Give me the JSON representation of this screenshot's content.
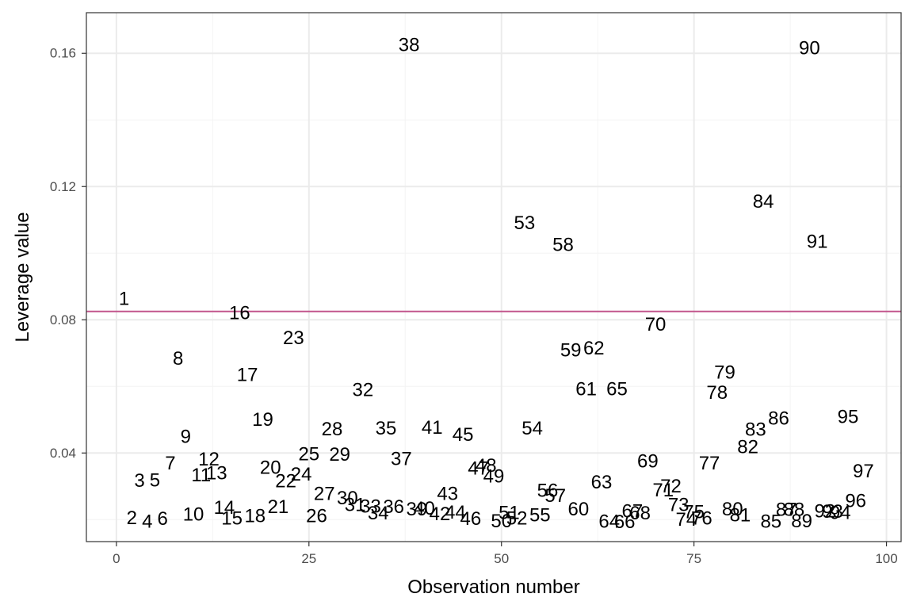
{
  "chart_data": {
    "type": "scatter",
    "title": "",
    "xlabel": "Observation number",
    "ylabel": "Leverage value",
    "xlim": [
      -3.9,
      101.9
    ],
    "ylim": [
      0.0134,
      0.1722
    ],
    "x_ticks": [
      0,
      25,
      50,
      75,
      100
    ],
    "x_tick_labels": [
      "0",
      "25",
      "50",
      "75",
      "100"
    ],
    "y_ticks": [
      0.04,
      0.08,
      0.12,
      0.16
    ],
    "y_tick_labels": [
      "0.04",
      "0.08",
      "0.12",
      "0.16"
    ],
    "x_minor": [
      12.5,
      37.5,
      62.5,
      87.5
    ],
    "y_minor": [
      0.02,
      0.06,
      0.1,
      0.14
    ],
    "grid": true,
    "legend": "none",
    "point_style": "text-label",
    "threshold_line": {
      "y": 0.0825,
      "color": "#c2558c"
    },
    "colors": {
      "panel_border": "#333333",
      "grid_major": "#ebebeb",
      "grid_minor": "#f4f4f4",
      "tick_text": "#4d4d4d"
    },
    "points": [
      {
        "x": 1,
        "y": 0.0863,
        "label": "1"
      },
      {
        "x": 2,
        "y": 0.0204,
        "label": "2"
      },
      {
        "x": 3,
        "y": 0.0316,
        "label": "3"
      },
      {
        "x": 4,
        "y": 0.0193,
        "label": "4"
      },
      {
        "x": 5,
        "y": 0.0317,
        "label": "5"
      },
      {
        "x": 6,
        "y": 0.0202,
        "label": "6"
      },
      {
        "x": 7,
        "y": 0.0368,
        "label": "7"
      },
      {
        "x": 8,
        "y": 0.0683,
        "label": "8"
      },
      {
        "x": 9,
        "y": 0.0448,
        "label": "9"
      },
      {
        "x": 10,
        "y": 0.0215,
        "label": "10"
      },
      {
        "x": 11,
        "y": 0.0333,
        "label": "11"
      },
      {
        "x": 12,
        "y": 0.0381,
        "label": "12"
      },
      {
        "x": 13,
        "y": 0.0339,
        "label": "13"
      },
      {
        "x": 14,
        "y": 0.0235,
        "label": "14"
      },
      {
        "x": 15,
        "y": 0.0203,
        "label": "15"
      },
      {
        "x": 16,
        "y": 0.082,
        "label": "16"
      },
      {
        "x": 17,
        "y": 0.0634,
        "label": "17"
      },
      {
        "x": 18,
        "y": 0.021,
        "label": "18"
      },
      {
        "x": 19,
        "y": 0.05,
        "label": "19"
      },
      {
        "x": 20,
        "y": 0.0355,
        "label": "20"
      },
      {
        "x": 21,
        "y": 0.0238,
        "label": "21"
      },
      {
        "x": 22,
        "y": 0.0315,
        "label": "22"
      },
      {
        "x": 23,
        "y": 0.0745,
        "label": "23"
      },
      {
        "x": 24,
        "y": 0.0335,
        "label": "24"
      },
      {
        "x": 25,
        "y": 0.0396,
        "label": "25"
      },
      {
        "x": 26,
        "y": 0.021,
        "label": "26"
      },
      {
        "x": 27,
        "y": 0.0277,
        "label": "27"
      },
      {
        "x": 28,
        "y": 0.0471,
        "label": "28"
      },
      {
        "x": 29,
        "y": 0.0395,
        "label": "29"
      },
      {
        "x": 30,
        "y": 0.0264,
        "label": "30"
      },
      {
        "x": 31,
        "y": 0.0244,
        "label": "31"
      },
      {
        "x": 32,
        "y": 0.0589,
        "label": "32"
      },
      {
        "x": 33,
        "y": 0.0239,
        "label": "33"
      },
      {
        "x": 34,
        "y": 0.0218,
        "label": "34"
      },
      {
        "x": 35,
        "y": 0.0473,
        "label": "35"
      },
      {
        "x": 36,
        "y": 0.0238,
        "label": "36"
      },
      {
        "x": 37,
        "y": 0.0382,
        "label": "37"
      },
      {
        "x": 38,
        "y": 0.1624,
        "label": "38"
      },
      {
        "x": 39,
        "y": 0.0231,
        "label": "39"
      },
      {
        "x": 40,
        "y": 0.0233,
        "label": "40"
      },
      {
        "x": 41,
        "y": 0.0476,
        "label": "41"
      },
      {
        "x": 42,
        "y": 0.0216,
        "label": "42"
      },
      {
        "x": 43,
        "y": 0.0277,
        "label": "43"
      },
      {
        "x": 44,
        "y": 0.0221,
        "label": "44"
      },
      {
        "x": 45,
        "y": 0.0454,
        "label": "45"
      },
      {
        "x": 46,
        "y": 0.0202,
        "label": "46"
      },
      {
        "x": 47,
        "y": 0.0353,
        "label": "47"
      },
      {
        "x": 48,
        "y": 0.0361,
        "label": "48"
      },
      {
        "x": 49,
        "y": 0.0329,
        "label": "49"
      },
      {
        "x": 50,
        "y": 0.0195,
        "label": "50"
      },
      {
        "x": 51,
        "y": 0.022,
        "label": "51"
      },
      {
        "x": 52,
        "y": 0.0203,
        "label": "52"
      },
      {
        "x": 53,
        "y": 0.109,
        "label": "53"
      },
      {
        "x": 54,
        "y": 0.0473,
        "label": "54"
      },
      {
        "x": 55,
        "y": 0.0212,
        "label": "55"
      },
      {
        "x": 56,
        "y": 0.0286,
        "label": "56"
      },
      {
        "x": 57,
        "y": 0.0271,
        "label": "57"
      },
      {
        "x": 58,
        "y": 0.1024,
        "label": "58"
      },
      {
        "x": 59,
        "y": 0.0708,
        "label": "59"
      },
      {
        "x": 60,
        "y": 0.0231,
        "label": "60"
      },
      {
        "x": 61,
        "y": 0.0591,
        "label": "61"
      },
      {
        "x": 62,
        "y": 0.0714,
        "label": "62"
      },
      {
        "x": 63,
        "y": 0.0311,
        "label": "63"
      },
      {
        "x": 64,
        "y": 0.0193,
        "label": "64"
      },
      {
        "x": 65,
        "y": 0.0591,
        "label": "65"
      },
      {
        "x": 66,
        "y": 0.0192,
        "label": "66"
      },
      {
        "x": 67,
        "y": 0.0224,
        "label": "67"
      },
      {
        "x": 68,
        "y": 0.0218,
        "label": "68"
      },
      {
        "x": 69,
        "y": 0.0375,
        "label": "69"
      },
      {
        "x": 70,
        "y": 0.0785,
        "label": "70"
      },
      {
        "x": 71,
        "y": 0.0287,
        "label": "71"
      },
      {
        "x": 72,
        "y": 0.0299,
        "label": "72"
      },
      {
        "x": 73,
        "y": 0.0244,
        "label": "73"
      },
      {
        "x": 74,
        "y": 0.0199,
        "label": "74"
      },
      {
        "x": 75,
        "y": 0.0222,
        "label": "75"
      },
      {
        "x": 76,
        "y": 0.0203,
        "label": "76"
      },
      {
        "x": 77,
        "y": 0.0368,
        "label": "77"
      },
      {
        "x": 78,
        "y": 0.058,
        "label": "78"
      },
      {
        "x": 79,
        "y": 0.0641,
        "label": "79"
      },
      {
        "x": 80,
        "y": 0.023,
        "label": "80"
      },
      {
        "x": 81,
        "y": 0.0212,
        "label": "81"
      },
      {
        "x": 82,
        "y": 0.0417,
        "label": "82"
      },
      {
        "x": 83,
        "y": 0.047,
        "label": "83"
      },
      {
        "x": 84,
        "y": 0.1154,
        "label": "84"
      },
      {
        "x": 85,
        "y": 0.0194,
        "label": "85"
      },
      {
        "x": 86,
        "y": 0.0503,
        "label": "86"
      },
      {
        "x": 87,
        "y": 0.0229,
        "label": "87"
      },
      {
        "x": 88,
        "y": 0.0229,
        "label": "88"
      },
      {
        "x": 89,
        "y": 0.0195,
        "label": "89"
      },
      {
        "x": 90,
        "y": 0.1615,
        "label": "90"
      },
      {
        "x": 91,
        "y": 0.1034,
        "label": "91"
      },
      {
        "x": 92,
        "y": 0.0224,
        "label": "92"
      },
      {
        "x": 93,
        "y": 0.0223,
        "label": "93"
      },
      {
        "x": 94,
        "y": 0.022,
        "label": "94"
      },
      {
        "x": 95,
        "y": 0.0508,
        "label": "95"
      },
      {
        "x": 96,
        "y": 0.0255,
        "label": "96"
      },
      {
        "x": 97,
        "y": 0.0345,
        "label": "97"
      }
    ]
  }
}
